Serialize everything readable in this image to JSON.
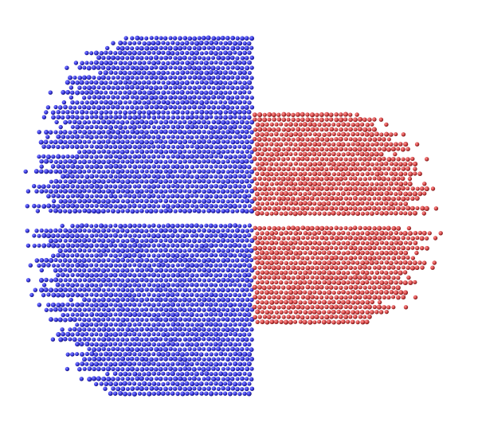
{
  "scene": {
    "background": "#ffffff",
    "clusters": [
      {
        "name": "blue-cylinder",
        "color_light": "#8a8cff",
        "color_mid": "#3c3ce6",
        "color_dark": "#15157a"
      },
      {
        "name": "red-cylinder",
        "color_light": "#ff9a9a",
        "color_mid": "#d84a4a",
        "color_dark": "#7a1a1a"
      }
    ]
  }
}
